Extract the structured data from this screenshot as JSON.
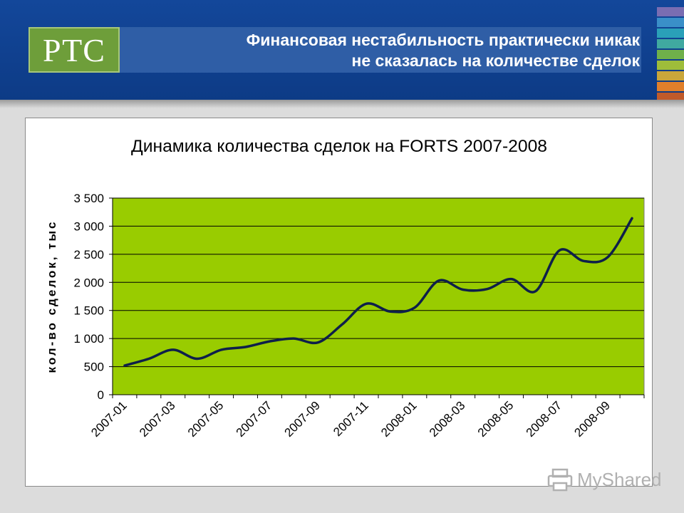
{
  "header": {
    "logo_text": "РТС",
    "headline_line1": "Финансовая нестабильность практически никак",
    "headline_line2": "не сказалась на количестве сделок",
    "stripe_colors": [
      "#7a6db2",
      "#3a8fc8",
      "#2aa0b8",
      "#40a9a0",
      "#6fb04a",
      "#9ebd3a",
      "#c9a63a",
      "#e07f2a",
      "#c05a2a"
    ]
  },
  "watermark": {
    "text": "MyShared",
    "icon": "printer-icon"
  },
  "colors": {
    "plot_bg": "#99cc00",
    "line": "#0e1f4a",
    "gridline": "#000000"
  },
  "chart_data": {
    "type": "line",
    "title": "Динамика количества сделок на FORTS 2007-2008",
    "xlabel": "",
    "ylabel": "кол-во сделок, тыс",
    "ylim": [
      0,
      3500
    ],
    "yticks": [
      0,
      500,
      1000,
      1500,
      2000,
      2500,
      3000,
      3500
    ],
    "ytick_labels": [
      "0",
      "500",
      "1 000",
      "1 500",
      "2 000",
      "2 500",
      "3 000",
      "3 500"
    ],
    "grid": true,
    "legend": "none",
    "x_tick_labels": [
      "2007-01",
      "2007-03",
      "2007-05",
      "2007-07",
      "2007-09",
      "2007-11",
      "2008-01",
      "2008-03",
      "2008-05",
      "2008-07",
      "2008-09"
    ],
    "x": [
      "2007-01",
      "2007-02",
      "2007-03",
      "2007-04",
      "2007-05",
      "2007-06",
      "2007-07",
      "2007-08",
      "2007-09",
      "2007-10",
      "2007-11",
      "2007-12",
      "2008-01",
      "2008-02",
      "2008-03",
      "2008-04",
      "2008-05",
      "2008-06",
      "2008-07",
      "2008-08",
      "2008-09",
      "2008-10"
    ],
    "series": [
      {
        "values": [
          520,
          640,
          800,
          640,
          800,
          850,
          950,
          1000,
          930,
          1250,
          1620,
          1480,
          1550,
          2030,
          1870,
          1880,
          2060,
          1840,
          2570,
          2380,
          2450,
          3140
        ]
      }
    ]
  }
}
